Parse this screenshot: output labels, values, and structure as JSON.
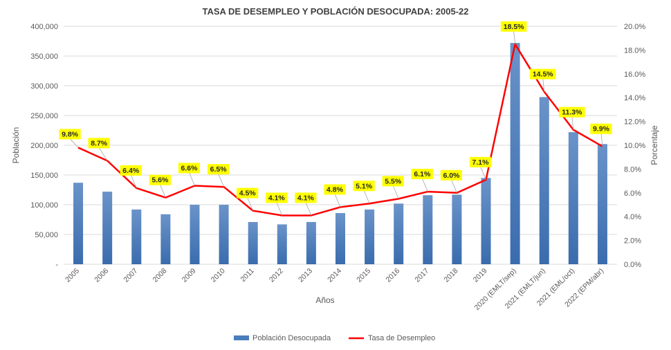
{
  "chart_data": {
    "type": "bar+line",
    "title": "TASA DE DESEMPLEO Y POBLACIÓN DESOCUPADA: 2005-22",
    "xlabel": "Años",
    "ylabel": "Población",
    "y2label": "Porcentaje",
    "ylim": [
      0,
      400000
    ],
    "y2lim": [
      0,
      20
    ],
    "yticks": [
      "-",
      "50,000",
      "100,000",
      "150,000",
      "200,000",
      "250,000",
      "300,000",
      "350,000",
      "400,000"
    ],
    "y2ticks": [
      "0.0%",
      "2.0%",
      "4.0%",
      "6.0%",
      "8.0%",
      "10.0%",
      "12.0%",
      "14.0%",
      "16.0%",
      "18.0%",
      "20.0%"
    ],
    "categories": [
      "2005",
      "2006",
      "2007",
      "2008",
      "2009",
      "2010",
      "2011",
      "2012",
      "2013",
      "2014",
      "2015",
      "2016",
      "2017",
      "2018",
      "2019",
      "2020 (EMLT/sep)",
      "2021 (EMLT/jun)",
      "2021 (EML/oct)",
      "2022 (EPM/abr)"
    ],
    "series": [
      {
        "name": "Población Desocupada",
        "type": "bar",
        "color": "#4a7ebb",
        "values": [
          137000,
          122000,
          92000,
          84000,
          100000,
          100000,
          71000,
          67000,
          71000,
          86000,
          92000,
          102000,
          116000,
          117000,
          145000,
          372000,
          281000,
          222000,
          202000
        ]
      },
      {
        "name": "Tasa de Desempleo",
        "type": "line",
        "color": "#ff0000",
        "values": [
          9.8,
          8.7,
          6.4,
          5.6,
          6.6,
          6.5,
          4.5,
          4.1,
          4.1,
          4.8,
          5.1,
          5.5,
          6.1,
          6.0,
          7.1,
          18.5,
          14.5,
          11.3,
          9.9
        ],
        "labels": [
          "9.8%",
          "8.7%",
          "6.4%",
          "5.6%",
          "6.6%",
          "6.5%",
          "4.5%",
          "4.1%",
          "4.1%",
          "4.8%",
          "5.1%",
          "5.5%",
          "6.1%",
          "6.0%",
          "7.1%",
          "18.5%",
          "14.5%",
          "11.3%",
          "9.9%"
        ]
      }
    ],
    "grid": true,
    "legend": "bottom"
  }
}
